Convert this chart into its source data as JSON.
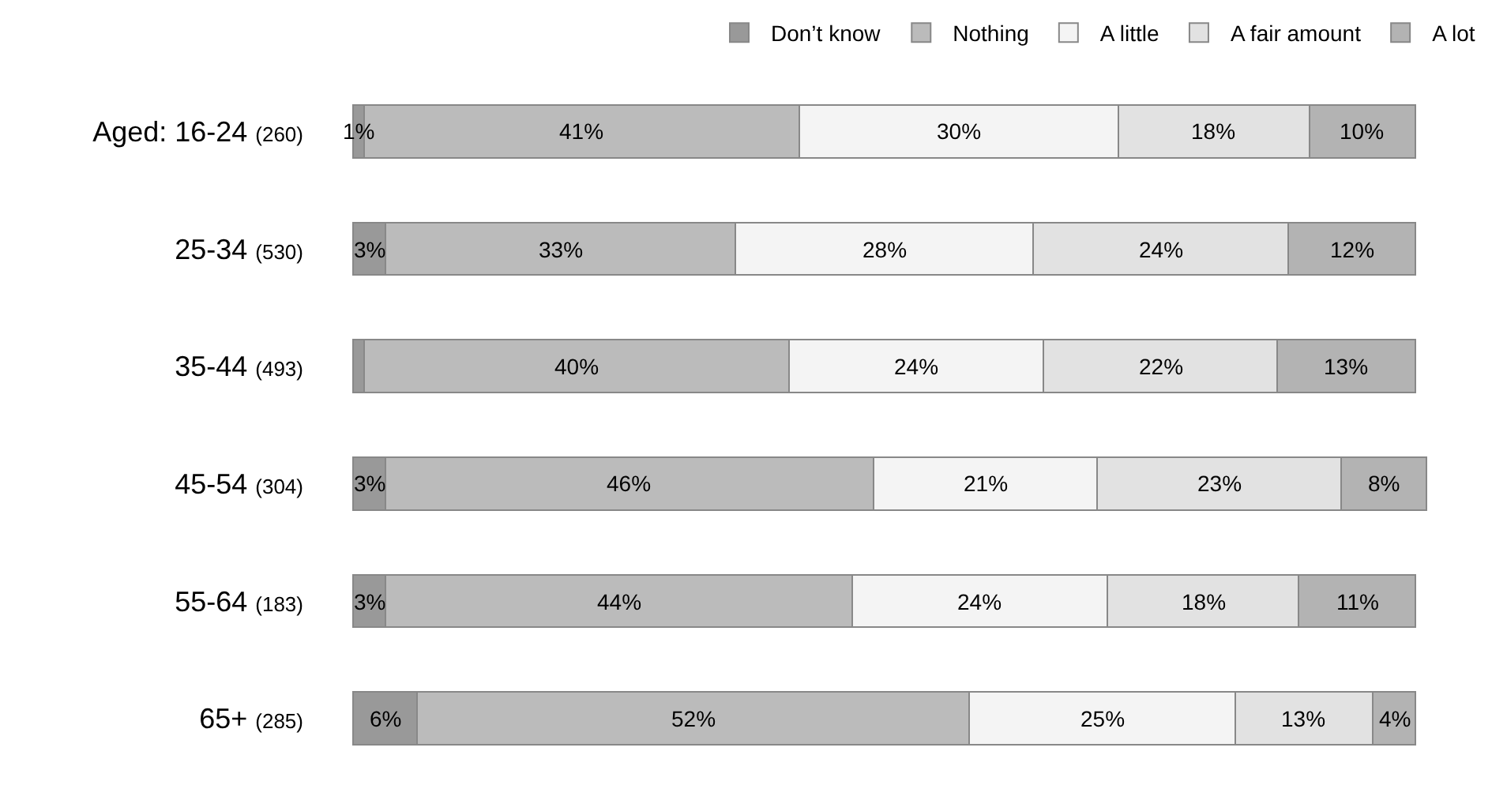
{
  "chart_data": {
    "type": "bar",
    "orientation": "horizontal",
    "stacked": true,
    "legend": "top",
    "categories": [
      "Aged: 16-24 (260)",
      "25-34 (530)",
      "35-44 (493)",
      "45-54 (304)",
      "55-64 (183)",
      "65+ (285)"
    ],
    "series": [
      {
        "name": "Don’t know",
        "color": "#999999",
        "values": [
          1,
          3,
          1,
          3,
          3,
          6
        ],
        "value_labels": [
          "1%",
          "3%",
          null,
          "3%",
          "3%",
          "6%"
        ]
      },
      {
        "name": "Nothing",
        "color": "#bbbbbb",
        "values": [
          41,
          33,
          40,
          46,
          44,
          52
        ],
        "value_labels": [
          "41%",
          "33%",
          "40%",
          "46%",
          "44%",
          "52%"
        ]
      },
      {
        "name": "A little",
        "color": "#f4f4f4",
        "values": [
          30,
          28,
          24,
          21,
          24,
          25
        ],
        "value_labels": [
          "30%",
          "28%",
          "24%",
          "21%",
          "24%",
          "25%"
        ]
      },
      {
        "name": "A fair amount",
        "color": "#e2e2e2",
        "values": [
          18,
          24,
          22,
          23,
          18,
          13
        ],
        "value_labels": [
          "18%",
          "24%",
          "22%",
          "23%",
          "18%",
          "13%"
        ]
      },
      {
        "name": "A lot",
        "color": "#b3b3b3",
        "values": [
          10,
          12,
          13,
          8,
          11,
          4
        ],
        "value_labels": [
          "10%",
          "12%",
          "13%",
          "8%",
          "11%",
          "4%"
        ]
      }
    ]
  }
}
